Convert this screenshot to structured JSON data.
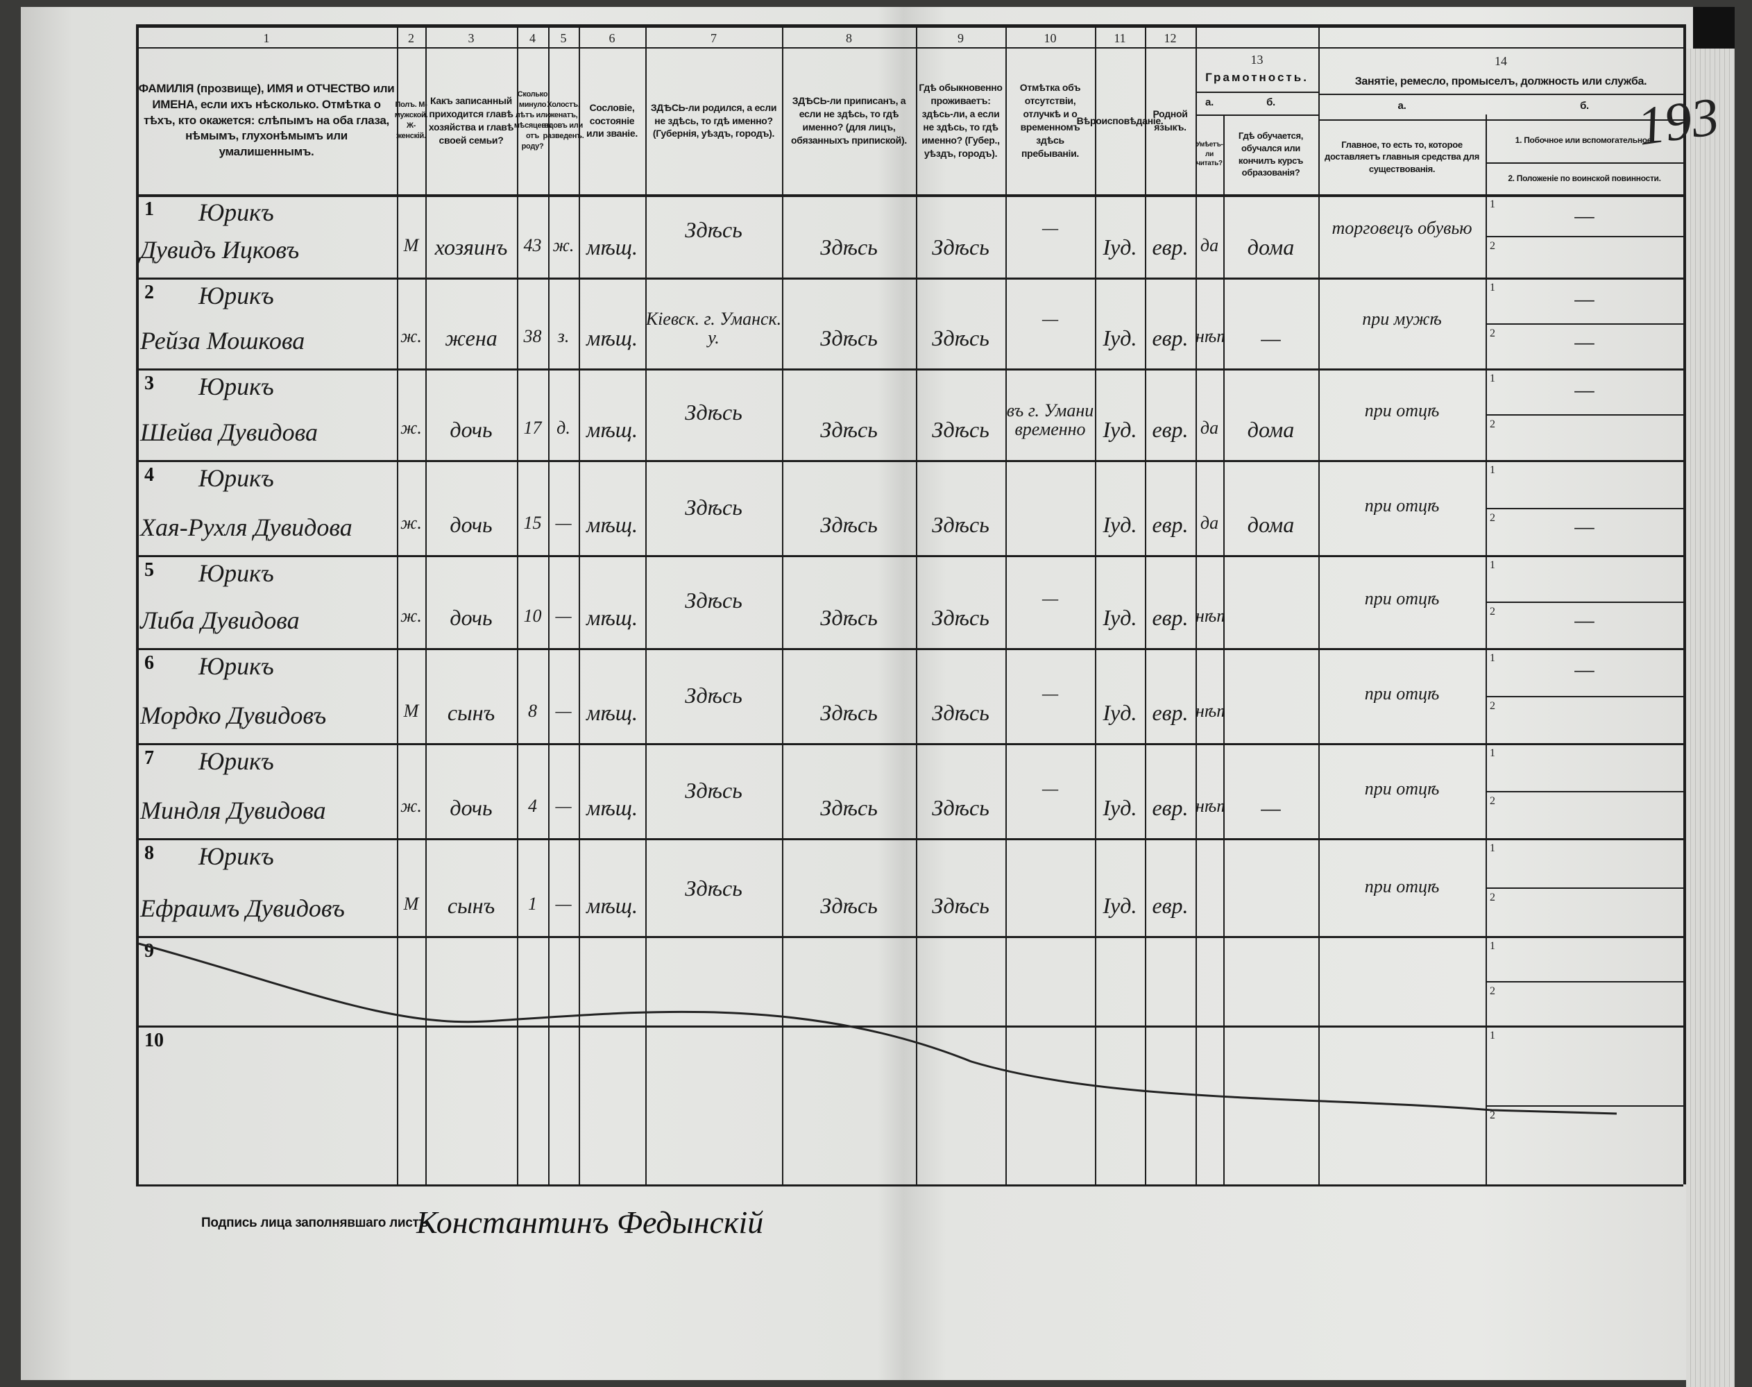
{
  "page_number": "193",
  "header": {
    "columns": [
      {
        "num": "1",
        "label": "ФАМИЛІЯ (прозвище), ИМЯ и ОТЧЕСТВО или ИМЕНА, если ихъ нѣсколько. Отмѣтка о тѣхъ, кто окажется: слѣпымъ на оба глаза, нѣмымъ, глухонѣмымъ или умалишеннымъ."
      },
      {
        "num": "2",
        "label": "Полъ. М-мужской. Ж-женскій."
      },
      {
        "num": "3",
        "label": "Какъ записанный приходится главѣ хозяйства и главѣ своей семьи?"
      },
      {
        "num": "4",
        "label": "Сколько минуло лѣтъ или мѣсяцевъ отъ роду?"
      },
      {
        "num": "5",
        "label": "Холостъ, женатъ, вдовъ или разведенъ."
      },
      {
        "num": "6",
        "label": "Сословіе, состояніе или званіе."
      },
      {
        "num": "7",
        "label": "ЗДѢСЬ-ли родился, а если не здѣсь, то гдѣ именно? (Губернія, уѣздъ, городъ)."
      },
      {
        "num": "8",
        "label": "ЗДѢСЬ-ли приписанъ, а если не здѣсь, то гдѣ именно? (для лицъ, обязанныхъ припиской)."
      },
      {
        "num": "9",
        "label": "Гдѣ обыкновенно проживаетъ: здѣсь-ли, а если не здѣсь, то гдѣ именно? (Губер., уѣздъ, городъ)."
      },
      {
        "num": "10",
        "label": "Отмѣтка объ отсутствіи, отлучкѣ и о временномъ здѣсь пребываніи."
      },
      {
        "num": "11",
        "label": "Вѣроисповѣданіе."
      },
      {
        "num": "12",
        "label": "Родной языкъ."
      }
    ],
    "literacy": {
      "num": "13",
      "title": "Грамотность.",
      "a_letter": "а.",
      "a_label": "Умѣетъ-ли читать?",
      "b_letter": "б.",
      "b_label": "Гдѣ обучается, обучался или кончилъ курсъ образованія?"
    },
    "occupation": {
      "num": "14",
      "title": "Занятіе, ремесло, промыселъ, должность или служба.",
      "a_letter": "а.",
      "a_label": "Главное, то есть то, которое доставляетъ главныя средства для существованія.",
      "b_letter": "б.",
      "b_line1": "1. Побочное или вспомогательное.",
      "b_line2": "2. Положеніе по воинской повинности."
    }
  },
  "rows": [
    {
      "no": "1",
      "surname": "Юрикъ",
      "given": "Дувидъ Ицковъ",
      "sex": "М",
      "relation": "хозяинъ",
      "age": "43",
      "marital": "ж.",
      "estate": "мѣщ.",
      "born": "Здѣсь",
      "registered": "Здѣсь",
      "residence": "Здѣсь",
      "absence": "—",
      "religion": "Іуд.",
      "language": "евр.",
      "literate": "да",
      "school": "дома",
      "occupation": "торговецъ обувью",
      "side": "—",
      "military": ""
    },
    {
      "no": "2",
      "surname": "Юрикъ",
      "given": "Рейза Мошкова",
      "sex": "ж.",
      "relation": "жена",
      "age": "38",
      "marital": "з.",
      "estate": "мѣщ.",
      "born": "Кіевск. г. Уманск. у.",
      "registered": "Здѣсь",
      "residence": "Здѣсь",
      "absence": "—",
      "religion": "Іуд.",
      "language": "евр.",
      "literate": "нѣтъ",
      "school": "—",
      "occupation": "при мужѣ",
      "side": "—",
      "military": "—"
    },
    {
      "no": "3",
      "surname": "Юрикъ",
      "given": "Шейва Дувидова",
      "sex": "ж.",
      "relation": "дочь",
      "age": "17",
      "marital": "д.",
      "estate": "мѣщ.",
      "born": "Здѣсь",
      "registered": "Здѣсь",
      "residence": "Здѣсь",
      "absence": "въ г. Умани временно",
      "religion": "Іуд.",
      "language": "евр.",
      "literate": "да",
      "school": "дома",
      "occupation": "при отцѣ",
      "side": "—",
      "military": ""
    },
    {
      "no": "4",
      "surname": "Юрикъ",
      "given": "Хая-Рухля Дувидова",
      "sex": "ж.",
      "relation": "дочь",
      "age": "15",
      "marital": "—",
      "estate": "мѣщ.",
      "born": "Здѣсь",
      "registered": "Здѣсь",
      "residence": "Здѣсь",
      "absence": "",
      "religion": "Іуд.",
      "language": "евр.",
      "literate": "да",
      "school": "дома",
      "occupation": "при отцѣ",
      "side": "",
      "military": "—"
    },
    {
      "no": "5",
      "surname": "Юрикъ",
      "given": "Либа Дувидова",
      "sex": "ж.",
      "relation": "дочь",
      "age": "10",
      "marital": "—",
      "estate": "мѣщ.",
      "born": "Здѣсь",
      "registered": "Здѣсь",
      "residence": "Здѣсь",
      "absence": "—",
      "religion": "Іуд.",
      "language": "евр.",
      "literate": "нѣтъ",
      "school": "",
      "occupation": "при отцѣ",
      "side": "",
      "military": "—"
    },
    {
      "no": "6",
      "surname": "Юрикъ",
      "given": "Мордко Дувидовъ",
      "sex": "М",
      "relation": "сынъ",
      "age": "8",
      "marital": "—",
      "estate": "мѣщ.",
      "born": "Здѣсь",
      "registered": "Здѣсь",
      "residence": "Здѣсь",
      "absence": "—",
      "religion": "Іуд.",
      "language": "евр.",
      "literate": "нѣтъ",
      "school": "",
      "occupation": "при отцѣ",
      "side": "—",
      "military": ""
    },
    {
      "no": "7",
      "surname": "Юрикъ",
      "given": "Миндля Дувидова",
      "sex": "ж.",
      "relation": "дочь",
      "age": "4",
      "marital": "—",
      "estate": "мѣщ.",
      "born": "Здѣсь",
      "registered": "Здѣсь",
      "residence": "Здѣсь",
      "absence": "—",
      "religion": "Іуд.",
      "language": "евр.",
      "literate": "нѣтъ",
      "school": "—",
      "occupation": "при отцѣ",
      "side": "",
      "military": ""
    },
    {
      "no": "8",
      "surname": "Юрикъ",
      "given": "Ефраимъ Дувидовъ",
      "sex": "М",
      "relation": "сынъ",
      "age": "1",
      "marital": "—",
      "estate": "мѣщ.",
      "born": "Здѣсь",
      "registered": "Здѣсь",
      "residence": "Здѣсь",
      "absence": "",
      "religion": "Іуд.",
      "language": "евр.",
      "literate": "",
      "school": "",
      "occupation": "при отцѣ",
      "side": "",
      "military": ""
    },
    {
      "no": "9"
    },
    {
      "no": "10"
    }
  ],
  "signature": {
    "label": "Подпись лица заполнявшаго листъ",
    "value": "Константинъ Федынскій"
  }
}
